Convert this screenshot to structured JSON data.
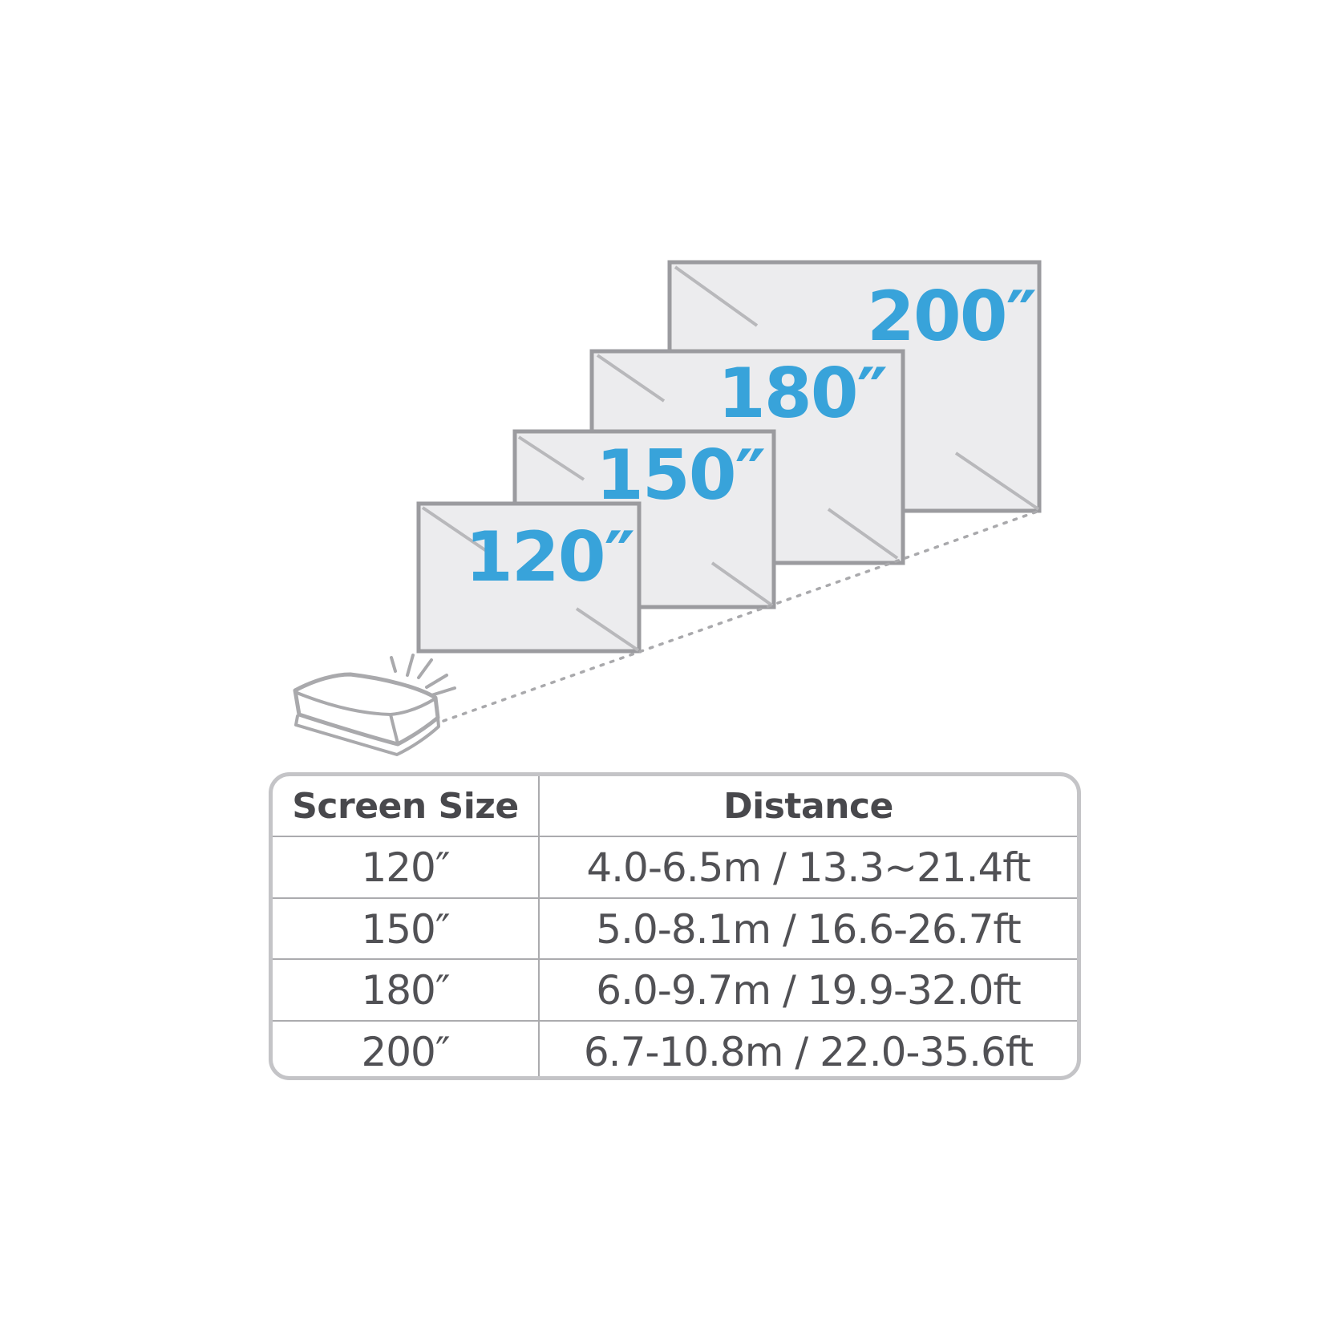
{
  "diagram": {
    "screens": [
      {
        "size": "120",
        "label": "120″"
      },
      {
        "size": "150",
        "label": "150″"
      },
      {
        "size": "180",
        "label": "180″"
      },
      {
        "size": "200",
        "label": "200″"
      }
    ],
    "colors": {
      "label_blue": "#38a3da",
      "screen_fill": "#ececee",
      "screen_border": "#9b9b9f",
      "glare_line": "#b8b8bb",
      "projector_line": "#a9a9ac"
    }
  },
  "table": {
    "headers": [
      "Screen Size",
      "Distance"
    ],
    "rows": [
      {
        "screen_size": "120″",
        "distance": "4.0-6.5m / 13.3~21.4ft"
      },
      {
        "screen_size": "150″",
        "distance": "5.0-8.1m / 16.6-26.7ft"
      },
      {
        "screen_size": "180″",
        "distance": "6.0-9.7m / 19.9-32.0ft"
      },
      {
        "screen_size": "200″",
        "distance": "6.7-10.8m / 22.0-35.6ft"
      }
    ]
  }
}
